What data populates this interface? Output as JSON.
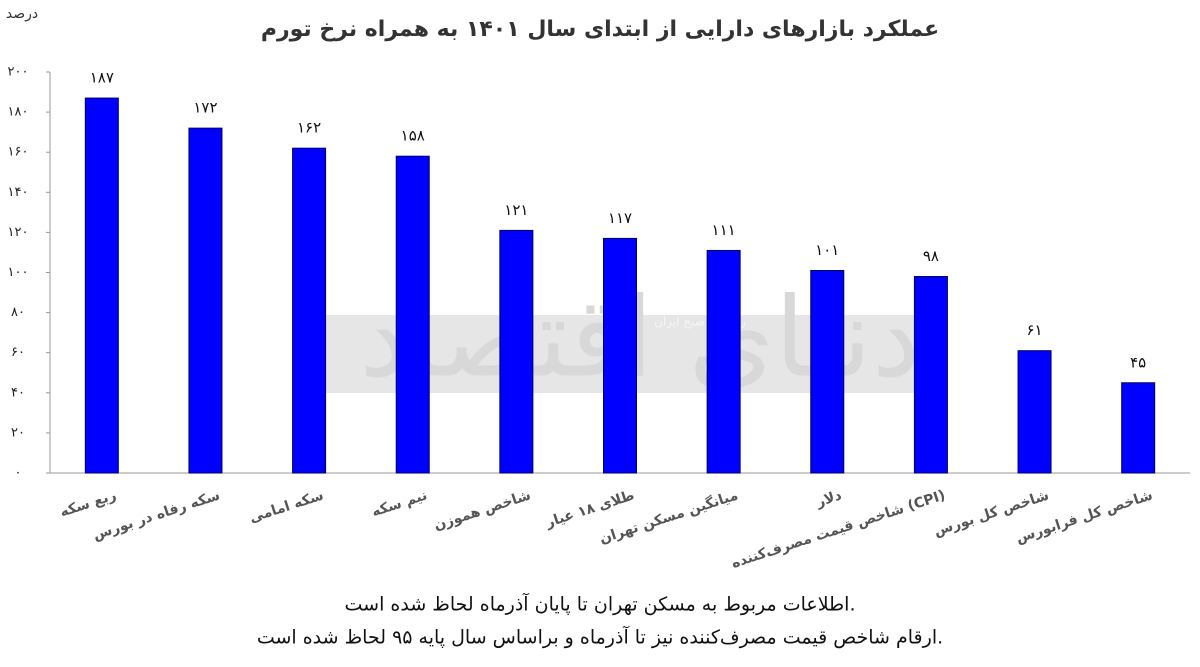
{
  "chart_data": {
    "type": "bar",
    "title": "عملکرد بازارهای دارایی از ابتدای سال ۱۴۰۱ به همراه نرخ تورم",
    "y_label": "درصد",
    "categories": [
      "ربع سکه",
      "سکه رفاه در بورس",
      "سکه امامی",
      "نیم سکه",
      "شاخص هموزن",
      "طلای ۱۸ عیار",
      "میانگین مسکن تهران",
      "دلار",
      "شاخص قیمت مصرف‌کننده (CPI)",
      "شاخص کل بورس",
      "شاخص کل فرابورس"
    ],
    "values": [
      187,
      172,
      162,
      158,
      121,
      117,
      111,
      101,
      98,
      61,
      45
    ],
    "value_labels": [
      "۱۸۷",
      "۱۷۲",
      "۱۶۲",
      "۱۵۸",
      "۱۲۱",
      "۱۱۷",
      "۱۱۱",
      "۱۰۱",
      "۹۸",
      "۶۱",
      "۴۵"
    ],
    "color": "#0000ff",
    "ylim": [
      0,
      200
    ],
    "yticks": [
      {
        "value": 0,
        "label": "۰"
      },
      {
        "value": 20,
        "label": "۲۰"
      },
      {
        "value": 40,
        "label": "۴۰"
      },
      {
        "value": 60,
        "label": "۶۰"
      },
      {
        "value": 80,
        "label": "۸۰"
      },
      {
        "value": 100,
        "label": "۱۰۰"
      },
      {
        "value": 120,
        "label": "۱۲۰"
      },
      {
        "value": 140,
        "label": "۱۴۰"
      },
      {
        "value": 160,
        "label": "۱۶۰"
      },
      {
        "value": 180,
        "label": "۱۸۰"
      },
      {
        "value": 200,
        "label": "۲۰۰"
      }
    ],
    "grid": false,
    "notes": [
      "اطلاعات مربوط به مسکن تهران تا پایان آذرماه لحاظ شده است.",
      "ارقام شاخص قیمت مصرف‌کننده نیز تا آذرماه و براساس سال پایه ۹۵ لحاظ شده است."
    ],
    "watermark": "دنیای اقتصاد",
    "watermark_sub": "روزنامه صبح ایران"
  }
}
